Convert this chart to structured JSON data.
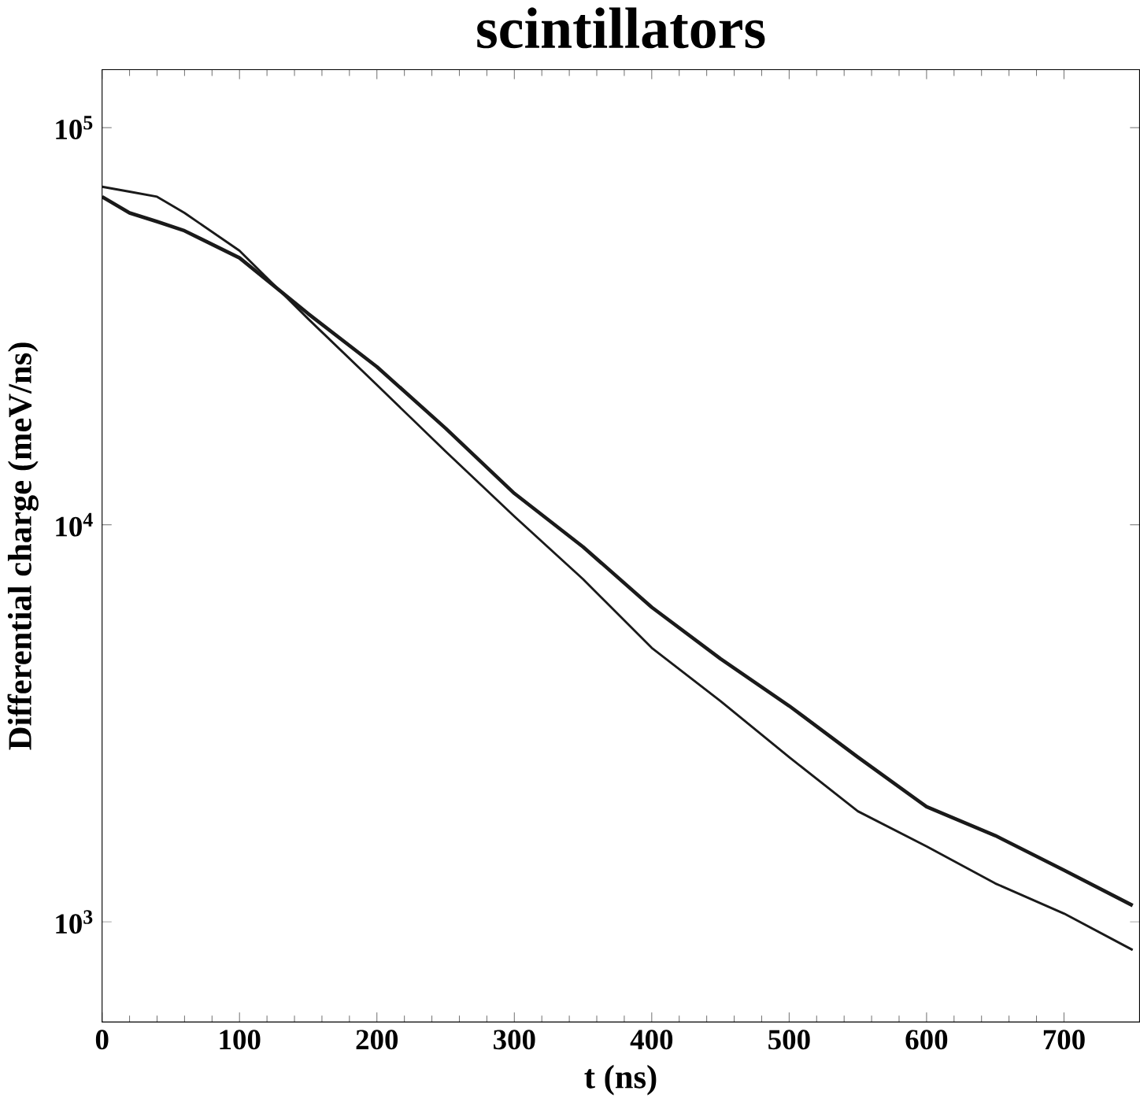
{
  "chart_data": {
    "type": "line",
    "title": "scintillators",
    "xlabel": "t (ns)",
    "ylabel": "Differential charge (meV/ns)",
    "log": "y",
    "x": [
      0,
      20,
      40,
      60,
      100,
      150,
      200,
      250,
      300,
      350,
      400,
      450,
      500,
      550,
      600,
      650,
      700,
      750
    ],
    "series": [
      {
        "color": "#1a1a1a",
        "values": [
          67000,
          61000,
          58000,
          55000,
          47000,
          34000,
          25000,
          17500,
          12000,
          8800,
          6200,
          4600,
          3500,
          2600,
          1950,
          1650,
          1350,
          1100
        ]
      },
      {
        "color": "#1a1a1a",
        "values": [
          71000,
          69000,
          67000,
          61000,
          49000,
          33000,
          22500,
          15300,
          10500,
          7300,
          4900,
          3600,
          2600,
          1900,
          1550,
          1250,
          1050,
          850
        ]
      }
    ],
    "xlim": [
      0,
      755
    ],
    "ylim": [
      560,
      140000
    ],
    "xticks": [
      0,
      100,
      200,
      300,
      400,
      500,
      600,
      700
    ],
    "yticks": [
      {
        "value": 1000,
        "label": "10$^{3}$"
      },
      {
        "value": 10000,
        "label": "10$^{4}$"
      },
      {
        "value": 100000,
        "label": "10$^{5}$"
      }
    ],
    "marker": "none",
    "line_style": "solid"
  }
}
